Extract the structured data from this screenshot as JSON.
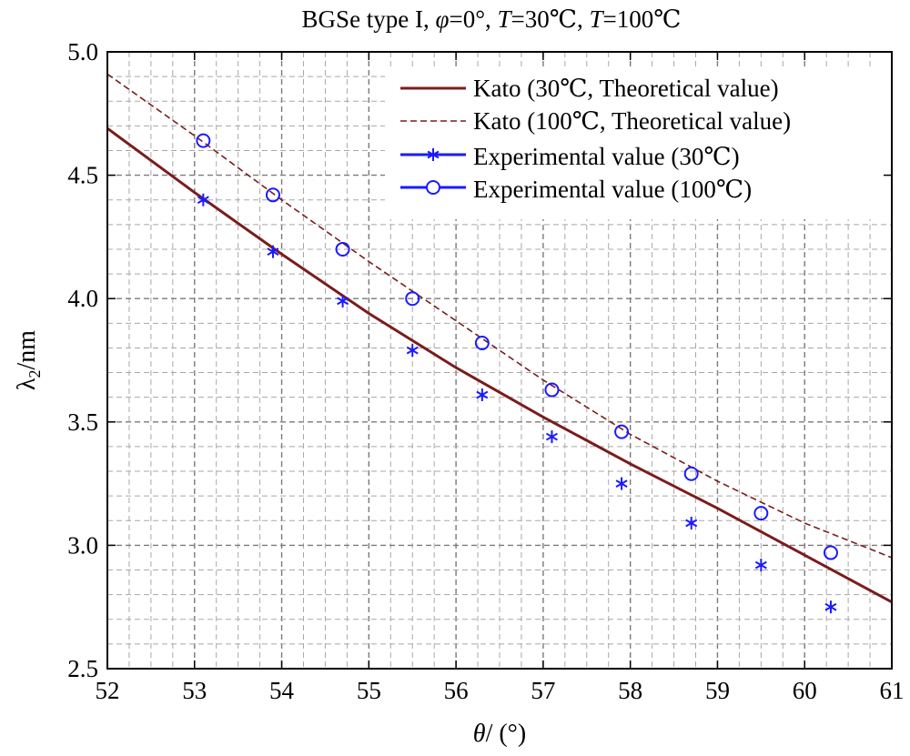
{
  "chart_data": {
    "type": "line",
    "title": {
      "prefix": "BGSe type I,  ",
      "phi_sym": "φ",
      "phi_val": "=0°,  ",
      "t1_sym": "T",
      "t1_val": "=30℃,  ",
      "t2_sym": "T",
      "t2_val": "=100℃"
    },
    "xlabel": {
      "sym": "θ",
      "rest": "/ (°)"
    },
    "ylabel": {
      "sym": "λ",
      "sub": "2",
      "rest": "/nm"
    },
    "xlim": [
      52,
      61
    ],
    "ylim": [
      2.5,
      5.0
    ],
    "xticks": [
      "52",
      "53",
      "54",
      "55",
      "56",
      "57",
      "58",
      "59",
      "60",
      "61"
    ],
    "yticks": [
      "2.5",
      "3.0",
      "3.5",
      "4.0",
      "4.5",
      "5.0"
    ],
    "grid": true,
    "legend_position": "top-right",
    "series": [
      {
        "name": "Kato (30℃, Theoretical value)",
        "style": "solid",
        "color": "#7b1c1c",
        "x": [
          52.0,
          53.0,
          54.0,
          55.0,
          56.0,
          57.0,
          58.0,
          59.0,
          60.0,
          61.0
        ],
        "y": [
          4.69,
          4.43,
          4.18,
          3.94,
          3.72,
          3.52,
          3.33,
          3.15,
          2.96,
          2.77
        ]
      },
      {
        "name": "Kato (100℃, Theoretical value)",
        "style": "dashed",
        "color": "#7b1c1c",
        "x": [
          52.0,
          53.0,
          54.0,
          55.0,
          56.0,
          57.0,
          58.0,
          59.0,
          60.0,
          61.0
        ],
        "y": [
          4.91,
          4.66,
          4.4,
          4.15,
          3.91,
          3.67,
          3.45,
          3.26,
          3.09,
          2.95
        ]
      },
      {
        "name": "Experimental value (30℃)",
        "style": "marker",
        "marker": "asterisk",
        "color": "#1a1aff",
        "x": [
          53.1,
          53.9,
          54.7,
          55.5,
          56.3,
          57.1,
          57.9,
          58.7,
          59.5,
          60.3
        ],
        "y": [
          4.4,
          4.19,
          3.99,
          3.79,
          3.61,
          3.44,
          3.25,
          3.09,
          2.92,
          2.75
        ]
      },
      {
        "name": "Experimental value (100℃)",
        "style": "marker",
        "marker": "circle",
        "color": "#1a1aff",
        "x": [
          53.1,
          53.9,
          54.7,
          55.5,
          56.3,
          57.1,
          57.9,
          58.7,
          59.5,
          60.3
        ],
        "y": [
          4.64,
          4.42,
          4.2,
          4.0,
          3.82,
          3.63,
          3.46,
          3.29,
          3.13,
          2.97
        ]
      }
    ]
  }
}
